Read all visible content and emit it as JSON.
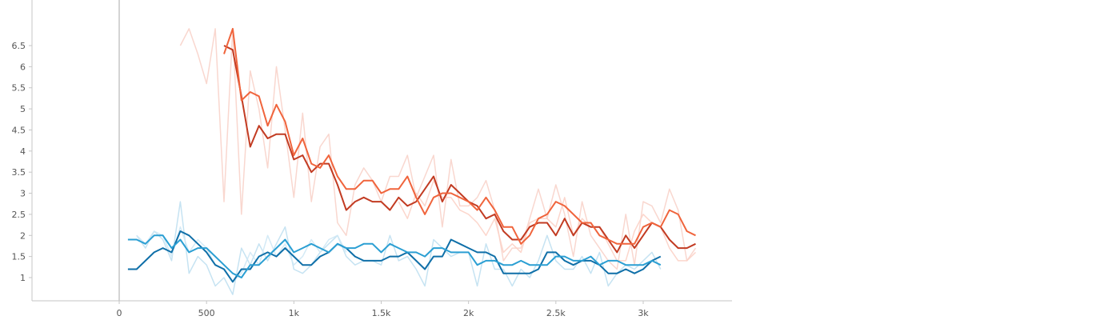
{
  "chart_data": {
    "type": "line",
    "title": "",
    "xlabel": "",
    "ylabel": "",
    "xlim": [
      -500,
      3500
    ],
    "ylim": [
      0.5,
      6.9
    ],
    "grid": false,
    "legend": "none",
    "x_ticks": [
      {
        "value": 0,
        "label": "0"
      },
      {
        "value": 500,
        "label": "500"
      },
      {
        "value": 1000,
        "label": "1k"
      },
      {
        "value": 1500,
        "label": "1.5k"
      },
      {
        "value": 2000,
        "label": "2k"
      },
      {
        "value": 2500,
        "label": "2.5k"
      },
      {
        "value": 3000,
        "label": "3k"
      }
    ],
    "y_ticks": [
      {
        "value": 1,
        "label": "1"
      },
      {
        "value": 1.5,
        "label": "1.5"
      },
      {
        "value": 2,
        "label": "2"
      },
      {
        "value": 2.5,
        "label": "2.5"
      },
      {
        "value": 3,
        "label": "3"
      },
      {
        "value": 3.5,
        "label": "3.5"
      },
      {
        "value": 4,
        "label": "4"
      },
      {
        "value": 4.5,
        "label": "4.5"
      },
      {
        "value": 5,
        "label": "5"
      },
      {
        "value": 5.5,
        "label": "5.5"
      },
      {
        "value": 6,
        "label": "6"
      },
      {
        "value": 6.5,
        "label": "6.5"
      }
    ],
    "series": [
      {
        "color": "#f4b7a8",
        "opacity": 0.55,
        "x": [
          350,
          400,
          450,
          500,
          550,
          600,
          650,
          700,
          750,
          800,
          850,
          900,
          950,
          1000,
          1050,
          1100,
          1150,
          1200,
          1250,
          1300,
          1350,
          1400,
          1450,
          1500,
          1550,
          1600,
          1650,
          1700,
          1750,
          1800,
          1850,
          1900,
          1950,
          2000,
          2050,
          2100,
          2150,
          2200,
          2250,
          2300,
          2350,
          2400,
          2450,
          2500,
          2550,
          2600,
          2650,
          2700,
          2750,
          2800,
          2850,
          2900,
          2950,
          3000,
          3050,
          3100,
          3150,
          3200,
          3250,
          3300
        ],
        "values": [
          6.5,
          6.9,
          6.3,
          5.6,
          6.9,
          2.8,
          6.9,
          2.5,
          5.9,
          5.0,
          3.6,
          6.0,
          4.5,
          2.9,
          4.9,
          2.8,
          4.1,
          4.4,
          2.3,
          2.0,
          3.2,
          3.6,
          3.3,
          2.8,
          3.4,
          3.4,
          3.9,
          2.9,
          3.4,
          3.9,
          2.2,
          3.8,
          2.7,
          2.7,
          2.9,
          3.3,
          2.6,
          1.4,
          1.7,
          1.7,
          2.4,
          3.1,
          2.4,
          3.2,
          2.5,
          1.5,
          2.8,
          2.0,
          1.7,
          1.4,
          1.2,
          2.5,
          1.3,
          2.8,
          2.7,
          2.3,
          3.1,
          2.6,
          1.4,
          1.7
        ]
      },
      {
        "color": "#fcd2c6",
        "opacity": 0.9,
        "x": [
          1600,
          1650,
          1700,
          1750,
          1800,
          1850,
          1900,
          1950,
          2000,
          2050,
          2100,
          2150,
          2200,
          2250,
          2300,
          2350,
          2400,
          2450,
          2500,
          2550,
          2600,
          2650,
          2700,
          2750,
          2800,
          2850,
          2900,
          2950,
          3000,
          3050,
          3100,
          3150,
          3200,
          3250,
          3300
        ],
        "values": [
          2.8,
          2.4,
          3.0,
          2.7,
          3.3,
          2.9,
          2.9,
          2.6,
          2.5,
          2.3,
          2.0,
          2.4,
          1.6,
          1.8,
          1.6,
          2.3,
          2.4,
          2.4,
          2.2,
          2.9,
          2.0,
          2.4,
          2.2,
          2.2,
          1.8,
          1.4,
          1.4,
          2.1,
          2.5,
          2.3,
          2.2,
          1.7,
          1.4,
          1.4,
          1.6
        ]
      },
      {
        "color": "#b8dcef",
        "opacity": 0.8,
        "x": [
          100,
          150,
          200,
          250,
          300,
          350,
          400,
          450,
          500,
          550,
          600,
          650,
          700,
          750,
          800,
          850,
          900,
          950,
          1000,
          1050,
          1100,
          1150,
          1200,
          1250,
          1300,
          1350,
          1400,
          1450,
          1500,
          1550,
          1600,
          1650,
          1700,
          1750,
          1800,
          1850,
          1900,
          1950,
          2000,
          2050,
          2100,
          2150,
          2200,
          2250,
          2300,
          2350,
          2400,
          2450,
          2500,
          2550,
          2600,
          2650,
          2700,
          2750,
          2800,
          2850,
          2900,
          2950,
          3000,
          3050,
          3100
        ],
        "values": [
          2.0,
          1.7,
          2.1,
          1.9,
          1.4,
          2.8,
          1.1,
          1.5,
          1.3,
          0.8,
          1.0,
          0.6,
          1.7,
          1.3,
          1.8,
          1.4,
          1.8,
          2.2,
          1.2,
          1.1,
          1.3,
          1.6,
          1.8,
          2.0,
          1.5,
          1.3,
          1.4,
          1.4,
          1.3,
          2.0,
          1.4,
          1.5,
          1.2,
          0.8,
          1.9,
          1.7,
          1.5,
          1.6,
          1.6,
          0.8,
          1.8,
          1.2,
          1.2,
          0.8,
          1.2,
          1.0,
          1.4,
          2.0,
          1.4,
          1.2,
          1.2,
          1.5,
          1.1,
          1.6,
          0.8,
          1.1,
          1.3,
          1.2,
          1.4,
          1.6,
          1.2
        ]
      },
      {
        "color": "#cfe8f5",
        "opacity": 0.9,
        "x": [
          100,
          150,
          200,
          250,
          300,
          350,
          400,
          450,
          500,
          550,
          600,
          650,
          700,
          750,
          800,
          850,
          900,
          950,
          1000,
          1050,
          1100,
          1150,
          1200,
          1250,
          1300
        ],
        "values": [
          2.0,
          1.8,
          2.1,
          2.0,
          1.5,
          2.2,
          1.6,
          1.9,
          1.7,
          1.3,
          1.2,
          0.9,
          1.1,
          1.6,
          1.3,
          2.0,
          1.5,
          1.8,
          1.3,
          1.5,
          1.9,
          1.6,
          1.9,
          2.0,
          1.6
        ]
      },
      {
        "color": "#c23b22",
        "x": [
          600,
          650,
          700,
          750,
          800,
          850,
          900,
          950,
          1000,
          1050,
          1100,
          1150,
          1200,
          1250,
          1300,
          1350,
          1400,
          1450,
          1500,
          1550,
          1600,
          1650,
          1700,
          1750,
          1800,
          1850,
          1900,
          1950,
          2000,
          2050,
          2100,
          2150,
          2200,
          2250,
          2300,
          2350,
          2400,
          2450,
          2500,
          2550,
          2600,
          2650,
          2700,
          2750,
          2800,
          2850,
          2900,
          2950,
          3000,
          3050,
          3100,
          3150,
          3200,
          3250,
          3300
        ],
        "values": [
          6.5,
          6.4,
          5.3,
          4.1,
          4.6,
          4.3,
          4.4,
          4.4,
          3.8,
          3.9,
          3.5,
          3.7,
          3.7,
          3.2,
          2.6,
          2.8,
          2.9,
          2.8,
          2.8,
          2.6,
          2.9,
          2.7,
          2.8,
          3.1,
          3.4,
          2.8,
          3.2,
          3.0,
          2.8,
          2.7,
          2.4,
          2.5,
          2.1,
          1.9,
          1.9,
          2.2,
          2.3,
          2.3,
          2.0,
          2.4,
          2.0,
          2.3,
          2.2,
          2.2,
          1.9,
          1.6,
          2.0,
          1.7,
          2.0,
          2.3,
          2.2,
          1.9,
          1.7,
          1.7,
          1.8
        ]
      },
      {
        "color": "#f0643c",
        "x": [
          600,
          650,
          700,
          750,
          800,
          850,
          900,
          950,
          1000,
          1050,
          1100,
          1150,
          1200,
          1250,
          1300,
          1350,
          1400,
          1450,
          1500,
          1550,
          1600,
          1650,
          1700,
          1750,
          1800,
          1850,
          1900,
          1950,
          2000,
          2050,
          2100,
          2150,
          2200,
          2250,
          2300,
          2350,
          2400,
          2450,
          2500,
          2550,
          2600,
          2650,
          2700,
          2750,
          2800,
          2850,
          2900,
          2950,
          3000,
          3050,
          3100,
          3150,
          3200,
          3250,
          3300
        ],
        "values": [
          6.3,
          6.9,
          5.2,
          5.4,
          5.3,
          4.6,
          5.1,
          4.7,
          3.9,
          4.3,
          3.7,
          3.6,
          3.9,
          3.4,
          3.1,
          3.1,
          3.3,
          3.3,
          3.0,
          3.1,
          3.1,
          3.4,
          2.9,
          2.5,
          2.9,
          3.0,
          3.0,
          2.9,
          2.8,
          2.6,
          2.9,
          2.6,
          2.2,
          2.2,
          1.8,
          2.0,
          2.4,
          2.5,
          2.8,
          2.7,
          2.5,
          2.3,
          2.3,
          2.0,
          1.9,
          1.8,
          1.8,
          1.8,
          2.2,
          2.3,
          2.2,
          2.6,
          2.5,
          2.1,
          2.0
        ]
      },
      {
        "color": "#0f6fa8",
        "x": [
          50,
          100,
          150,
          200,
          250,
          300,
          350,
          400,
          450,
          500,
          550,
          600,
          650,
          700,
          750,
          800,
          850,
          900,
          950,
          1000,
          1050,
          1100,
          1150,
          1200,
          1250,
          1300,
          1350,
          1400,
          1450,
          1500,
          1550,
          1600,
          1650,
          1700,
          1750,
          1800,
          1850,
          1900,
          1950,
          2000,
          2050,
          2100,
          2150,
          2200,
          2250,
          2300,
          2350,
          2400,
          2450,
          2500,
          2550,
          2600,
          2650,
          2700,
          2750,
          2800,
          2850,
          2900,
          2950,
          3000,
          3050,
          3100
        ],
        "values": [
          1.2,
          1.2,
          1.4,
          1.6,
          1.7,
          1.6,
          2.1,
          2.0,
          1.8,
          1.6,
          1.3,
          1.2,
          0.9,
          1.2,
          1.2,
          1.5,
          1.6,
          1.5,
          1.7,
          1.5,
          1.3,
          1.3,
          1.5,
          1.6,
          1.8,
          1.7,
          1.5,
          1.4,
          1.4,
          1.4,
          1.5,
          1.5,
          1.6,
          1.4,
          1.2,
          1.5,
          1.5,
          1.9,
          1.8,
          1.7,
          1.6,
          1.6,
          1.5,
          1.1,
          1.1,
          1.1,
          1.1,
          1.2,
          1.6,
          1.6,
          1.4,
          1.3,
          1.4,
          1.4,
          1.3,
          1.1,
          1.1,
          1.2,
          1.1,
          1.2,
          1.4,
          1.5
        ]
      },
      {
        "color": "#2b9fd3",
        "x": [
          50,
          100,
          150,
          200,
          250,
          300,
          350,
          400,
          450,
          500,
          550,
          600,
          650,
          700,
          750,
          800,
          850,
          900,
          950,
          1000,
          1050,
          1100,
          1150,
          1200,
          1250,
          1300,
          1350,
          1400,
          1450,
          1500,
          1550,
          1600,
          1650,
          1700,
          1750,
          1800,
          1850,
          1900,
          1950,
          2000,
          2050,
          2100,
          2150,
          2200,
          2250,
          2300,
          2350,
          2400,
          2450,
          2500,
          2550,
          2600,
          2650,
          2700,
          2750,
          2800,
          2850,
          2900,
          2950,
          3000,
          3050,
          3100
        ],
        "values": [
          1.9,
          1.9,
          1.8,
          2.0,
          2.0,
          1.7,
          1.9,
          1.6,
          1.7,
          1.7,
          1.5,
          1.3,
          1.1,
          1.0,
          1.3,
          1.3,
          1.5,
          1.7,
          1.9,
          1.6,
          1.7,
          1.8,
          1.7,
          1.6,
          1.8,
          1.7,
          1.7,
          1.8,
          1.8,
          1.6,
          1.8,
          1.7,
          1.6,
          1.6,
          1.5,
          1.7,
          1.7,
          1.6,
          1.6,
          1.6,
          1.3,
          1.4,
          1.4,
          1.3,
          1.3,
          1.4,
          1.3,
          1.3,
          1.3,
          1.5,
          1.5,
          1.4,
          1.4,
          1.5,
          1.3,
          1.4,
          1.4,
          1.3,
          1.3,
          1.3,
          1.4,
          1.3
        ]
      }
    ]
  }
}
